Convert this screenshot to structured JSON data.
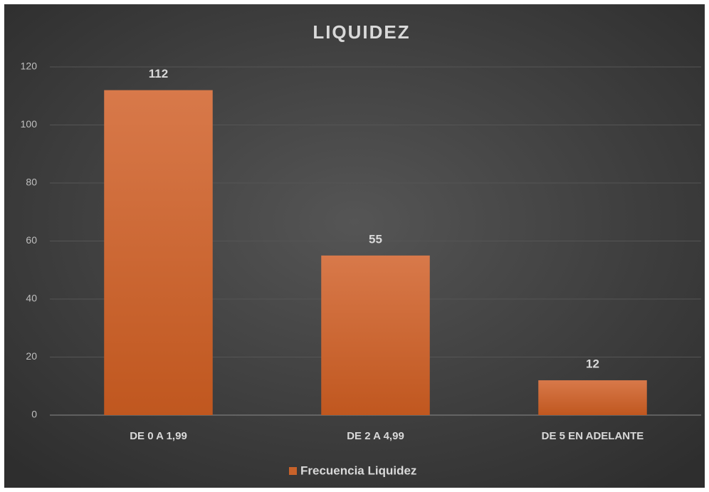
{
  "chart_data": {
    "type": "bar",
    "title": "LIQUIDEZ",
    "categories": [
      "DE 0 A 1,99",
      "DE 2 A 4,99",
      "DE 5 EN ADELANTE"
    ],
    "series": [
      {
        "name": "Frecuencia Liquidez",
        "color": "#c8622a",
        "values": [
          112,
          55,
          12
        ]
      }
    ],
    "ylim": [
      0,
      120
    ],
    "yticks": [
      0,
      20,
      40,
      60,
      80,
      100,
      120
    ],
    "grid": true,
    "legend": "bottom"
  }
}
